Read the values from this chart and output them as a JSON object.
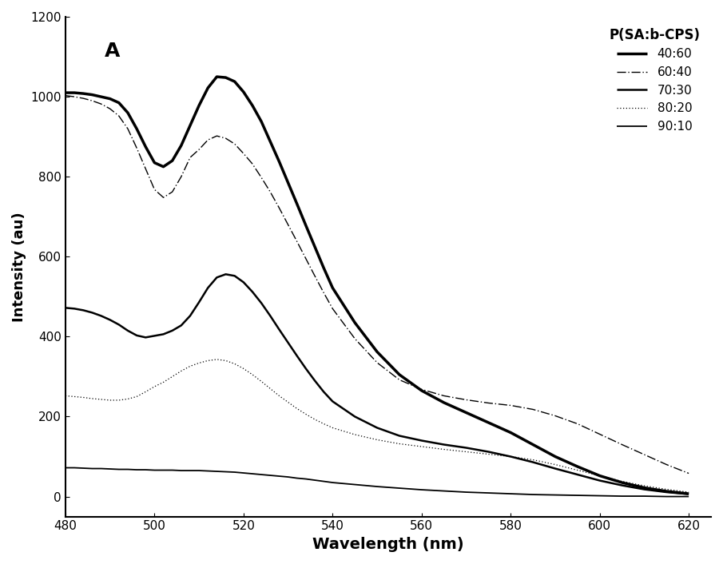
{
  "title": "A",
  "xlabel": "Wavelength (nm)",
  "ylabel": "Intensity (au)",
  "xlim": [
    480,
    625
  ],
  "ylim": [
    -50,
    1200
  ],
  "xticks": [
    480,
    500,
    520,
    540,
    560,
    580,
    600,
    620
  ],
  "yticks": [
    0,
    200,
    400,
    600,
    800,
    1000,
    1200
  ],
  "legend_title": "P(SA:b-CPS)",
  "background_color": "#ffffff",
  "series": [
    {
      "label": "40:60",
      "linestyle": "solid",
      "linewidth": 2.5,
      "color": "#000000",
      "x": [
        480,
        482,
        484,
        486,
        488,
        490,
        492,
        494,
        496,
        498,
        500,
        502,
        504,
        506,
        508,
        510,
        512,
        514,
        516,
        518,
        520,
        522,
        524,
        526,
        528,
        530,
        532,
        534,
        536,
        538,
        540,
        545,
        550,
        555,
        560,
        565,
        570,
        575,
        580,
        585,
        590,
        595,
        600,
        605,
        610,
        615,
        620
      ],
      "y": [
        1010,
        1010,
        1008,
        1005,
        1000,
        995,
        985,
        960,
        920,
        875,
        835,
        825,
        840,
        878,
        928,
        978,
        1022,
        1050,
        1048,
        1038,
        1012,
        978,
        938,
        888,
        838,
        785,
        732,
        678,
        625,
        572,
        522,
        435,
        362,
        305,
        265,
        235,
        210,
        185,
        160,
        130,
        100,
        75,
        52,
        35,
        22,
        13,
        7
      ]
    },
    {
      "label": "60:40",
      "linestyle": "dashdot_fine",
      "linewidth": 1.0,
      "color": "#000000",
      "x": [
        480,
        482,
        484,
        486,
        488,
        490,
        492,
        494,
        496,
        498,
        500,
        502,
        504,
        506,
        508,
        510,
        512,
        514,
        516,
        518,
        520,
        522,
        524,
        526,
        528,
        530,
        532,
        534,
        536,
        538,
        540,
        545,
        550,
        555,
        560,
        565,
        570,
        575,
        580,
        585,
        590,
        595,
        600,
        605,
        610,
        615,
        620
      ],
      "y": [
        1003,
        1000,
        996,
        990,
        982,
        970,
        952,
        920,
        872,
        820,
        768,
        748,
        762,
        800,
        848,
        868,
        892,
        902,
        896,
        882,
        858,
        832,
        798,
        762,
        722,
        680,
        638,
        595,
        552,
        510,
        470,
        395,
        335,
        292,
        268,
        252,
        242,
        234,
        228,
        218,
        202,
        182,
        156,
        130,
        105,
        80,
        58
      ]
    },
    {
      "label": "70:30",
      "linestyle": "solid",
      "linewidth": 1.8,
      "color": "#000000",
      "x": [
        480,
        482,
        484,
        486,
        488,
        490,
        492,
        494,
        496,
        498,
        500,
        502,
        504,
        506,
        508,
        510,
        512,
        514,
        516,
        518,
        520,
        522,
        524,
        526,
        528,
        530,
        532,
        534,
        536,
        538,
        540,
        545,
        550,
        555,
        560,
        565,
        570,
        575,
        580,
        585,
        590,
        595,
        600,
        605,
        610,
        615,
        620
      ],
      "y": [
        472,
        470,
        466,
        460,
        452,
        442,
        430,
        415,
        403,
        398,
        402,
        406,
        415,
        428,
        452,
        486,
        522,
        548,
        556,
        552,
        536,
        512,
        484,
        452,
        418,
        385,
        352,
        320,
        290,
        262,
        238,
        200,
        172,
        152,
        140,
        130,
        122,
        112,
        100,
        86,
        70,
        55,
        40,
        28,
        18,
        11,
        6
      ]
    },
    {
      "label": "80:20",
      "linestyle": "fine_dotted",
      "linewidth": 0.9,
      "color": "#000000",
      "x": [
        480,
        482,
        484,
        486,
        488,
        490,
        492,
        494,
        496,
        498,
        500,
        502,
        504,
        506,
        508,
        510,
        512,
        514,
        516,
        518,
        520,
        522,
        524,
        526,
        528,
        530,
        532,
        534,
        536,
        538,
        540,
        545,
        550,
        555,
        560,
        565,
        570,
        575,
        580,
        585,
        590,
        595,
        600,
        605,
        610,
        615,
        620
      ],
      "y": [
        252,
        250,
        248,
        245,
        243,
        241,
        241,
        244,
        250,
        262,
        275,
        286,
        300,
        314,
        326,
        334,
        340,
        343,
        340,
        332,
        320,
        305,
        288,
        270,
        252,
        236,
        220,
        206,
        193,
        182,
        172,
        155,
        142,
        132,
        125,
        118,
        112,
        106,
        100,
        92,
        80,
        66,
        52,
        38,
        27,
        18,
        11
      ]
    },
    {
      "label": "90:10",
      "linestyle": "solid",
      "linewidth": 1.3,
      "color": "#000000",
      "x": [
        480,
        482,
        484,
        486,
        488,
        490,
        492,
        494,
        496,
        498,
        500,
        502,
        504,
        506,
        508,
        510,
        512,
        514,
        516,
        518,
        520,
        522,
        524,
        526,
        528,
        530,
        532,
        534,
        536,
        538,
        540,
        545,
        550,
        555,
        560,
        565,
        570,
        575,
        580,
        585,
        590,
        595,
        600,
        605,
        610,
        615,
        620
      ],
      "y": [
        72,
        72,
        71,
        70,
        70,
        69,
        68,
        68,
        67,
        67,
        66,
        66,
        66,
        65,
        65,
        65,
        64,
        63,
        62,
        61,
        59,
        57,
        55,
        53,
        51,
        49,
        46,
        44,
        41,
        38,
        35,
        30,
        25,
        21,
        17,
        14,
        11,
        9,
        7,
        5,
        4,
        3,
        2,
        1,
        1,
        0,
        0
      ]
    }
  ]
}
